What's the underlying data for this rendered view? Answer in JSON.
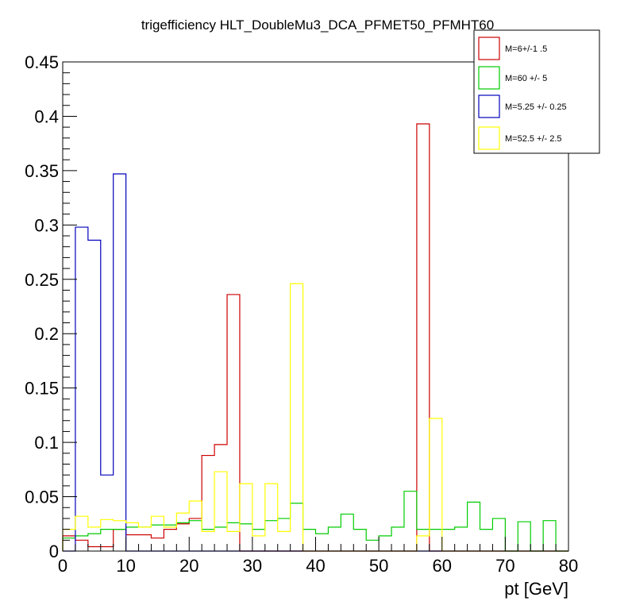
{
  "chart_data": {
    "type": "histogram",
    "title": "trigefficiency HLT_DoubleMu3_DCA_PFMET50_PFMHT60",
    "xlabel": "pt [GeV]",
    "ylabel": "",
    "xlim": [
      0,
      80
    ],
    "ylim": [
      0,
      0.45
    ],
    "bin_width": 2,
    "x_ticks": [
      0,
      10,
      20,
      30,
      40,
      50,
      60,
      70,
      80
    ],
    "y_ticks": [
      0,
      0.05,
      0.1,
      0.15,
      0.2,
      0.25,
      0.3,
      0.35,
      0.4,
      0.45
    ],
    "x_tick_labels": [
      "0",
      "10",
      "20",
      "30",
      "40",
      "50",
      "60",
      "70",
      "80"
    ],
    "y_tick_labels": [
      "0",
      "0.05",
      "0.1",
      "0.15",
      "0.2",
      "0.25",
      "0.3",
      "0.35",
      "0.4",
      "0.45"
    ],
    "legend_position": "top-right",
    "series": [
      {
        "name": "M=6+/-1 .5",
        "color": "#cc0000",
        "values": [
          0.014,
          0.01,
          0.004,
          0.004,
          0.02,
          0.015,
          0.015,
          0.012,
          0.02,
          0.025,
          0.03,
          0.088,
          0.098,
          0.236,
          0,
          0,
          0,
          0,
          0,
          0,
          0,
          0,
          0,
          0,
          0,
          0,
          0,
          0,
          0.393,
          0,
          0,
          0,
          0,
          0,
          0,
          0,
          0,
          0,
          0,
          0
        ]
      },
      {
        "name": "M=60 +/- 5",
        "color": "#00cc00",
        "values": [
          0.012,
          0.014,
          0.016,
          0.02,
          0.02,
          0.022,
          0.022,
          0.024,
          0.024,
          0.026,
          0.028,
          0.02,
          0.022,
          0.026,
          0.025,
          0.02,
          0.028,
          0.03,
          0.044,
          0.02,
          0.016,
          0.022,
          0.034,
          0.02,
          0.01,
          0.014,
          0.022,
          0.055,
          0.02,
          0.02,
          0.02,
          0.022,
          0.045,
          0.02,
          0.03,
          0,
          0.027,
          0,
          0.028,
          0
        ]
      },
      {
        "name": "M=5.25 +/- 0.25",
        "color": "#0000bb",
        "values": [
          0,
          0.298,
          0.286,
          0.07,
          0.347,
          0,
          0,
          0,
          0,
          0,
          0,
          0,
          0,
          0,
          0,
          0,
          0,
          0,
          0,
          0,
          0,
          0,
          0,
          0,
          0,
          0,
          0,
          0,
          0,
          0,
          0,
          0,
          0,
          0,
          0,
          0,
          0,
          0,
          0,
          0
        ]
      },
      {
        "name": "M=52.5 +/- 2.5",
        "color": "#ffff00",
        "values": [
          0.02,
          0.032,
          0.022,
          0.029,
          0.028,
          0.026,
          0.022,
          0.032,
          0.022,
          0.035,
          0.046,
          0.018,
          0.073,
          0.018,
          0.062,
          0.014,
          0.062,
          0.018,
          0.246,
          0,
          0,
          0,
          0,
          0,
          0,
          0,
          0,
          0,
          0.014,
          0.122,
          0,
          0,
          0,
          0,
          0,
          0,
          0,
          0,
          0,
          0
        ]
      }
    ]
  }
}
